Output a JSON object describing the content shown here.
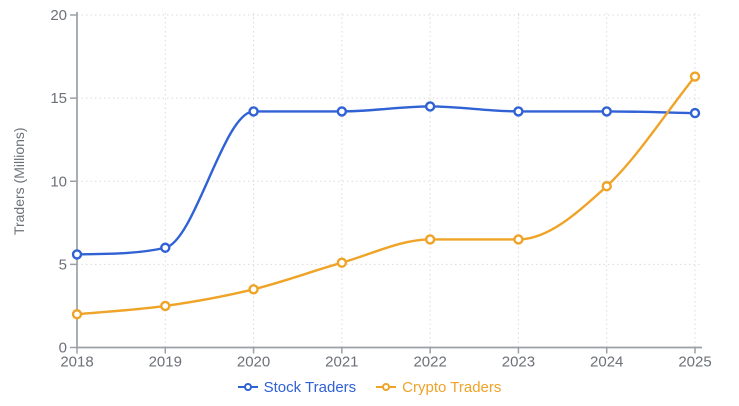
{
  "page": {
    "background": "#ffffff"
  },
  "chart_data": {
    "type": "line",
    "x": [
      2018,
      2019,
      2020,
      2021,
      2022,
      2023,
      2024,
      2025
    ],
    "series": [
      {
        "name": "Stock Traders",
        "color": "#3061d5",
        "values": [
          5.6,
          6.0,
          14.2,
          14.2,
          14.5,
          14.2,
          14.2,
          14.1
        ]
      },
      {
        "name": "Crypto Traders",
        "color": "#efa327",
        "values": [
          2.0,
          2.5,
          3.5,
          5.1,
          6.5,
          6.5,
          9.7,
          16.3
        ]
      }
    ],
    "title": "",
    "xlabel": "",
    "ylabel": "Traders (Millions)",
    "ylim": [
      0,
      20
    ],
    "yticks": [
      0,
      5,
      10,
      15,
      20
    ],
    "grid": true,
    "grid_style": "dotted",
    "line_interpolation": "monotone",
    "marker": "open-circle",
    "legend_position": "bottom",
    "style": {
      "axis_color": "#9aa0a6",
      "tick_text_color": "#6d7177",
      "grid_color": "#d9dbde",
      "marker_fill": "#ffffff",
      "tick_font_size": 15,
      "ylabel_font_size": 14
    }
  }
}
